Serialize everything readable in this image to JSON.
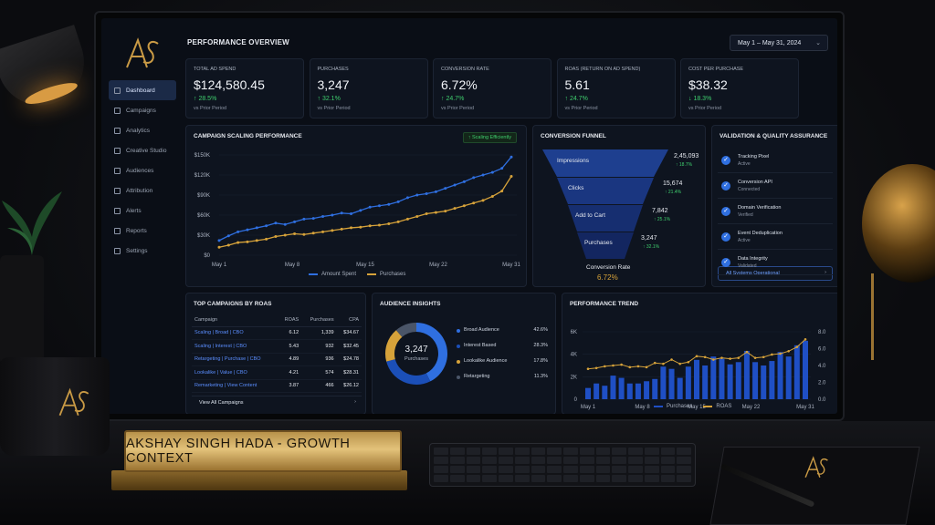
{
  "app": {
    "title": "PERFORMANCE OVERVIEW",
    "date_range": "May 1 – May 31, 2024"
  },
  "sidebar": {
    "items": [
      {
        "label": "Dashboard",
        "icon": "dashboard-icon",
        "active": true
      },
      {
        "label": "Campaigns",
        "icon": "campaigns-icon"
      },
      {
        "label": "Analytics",
        "icon": "analytics-icon"
      },
      {
        "label": "Creative Studio",
        "icon": "creative-icon"
      },
      {
        "label": "Audiences",
        "icon": "audiences-icon"
      },
      {
        "label": "Attribution",
        "icon": "attribution-icon"
      },
      {
        "label": "Alerts",
        "icon": "bell-icon"
      },
      {
        "label": "Reports",
        "icon": "reports-icon"
      },
      {
        "label": "Settings",
        "icon": "gear-icon"
      }
    ]
  },
  "kpis": [
    {
      "label": "TOTAL AD SPEND",
      "value": "$124,580.45",
      "change": "↑ 28.5%",
      "sub": "vs Prior Period"
    },
    {
      "label": "PURCHASES",
      "value": "3,247",
      "change": "↑ 32.1%",
      "sub": "vs Prior Period"
    },
    {
      "label": "CONVERSION RATE",
      "value": "6.72%",
      "change": "↑ 24.7%",
      "sub": "vs Prior Period"
    },
    {
      "label": "ROAS (RETURN ON AD SPEND)",
      "value": "5.61",
      "change": "↑ 24.7%",
      "sub": "vs Prior Period"
    },
    {
      "label": "COST PER PURCHASE",
      "value": "$38.32",
      "change": "↓ 18.3%",
      "sub": "vs Prior Period"
    }
  ],
  "scaling": {
    "title": "CAMPAIGN SCALING PERFORMANCE",
    "badge": "↑ Scaling Efficiently"
  },
  "funnel": {
    "title": "CONVERSION FUNNEL",
    "stages": [
      {
        "label": "Impressions",
        "value": "2,45,093",
        "change": "↑ 18.7%"
      },
      {
        "label": "Clicks",
        "value": "15,674",
        "change": "↑ 21.4%"
      },
      {
        "label": "Add to Cart",
        "value": "7,842",
        "change": "↑ 25.1%"
      },
      {
        "label": "Purchases",
        "value": "3,247",
        "change": "↑ 32.1%"
      }
    ],
    "rate_label": "Conversion Rate",
    "rate_value": "6.72%"
  },
  "validation": {
    "title": "VALIDATION & QUALITY ASSURANCE",
    "items": [
      {
        "name": "Tracking Pixel",
        "status": "Active"
      },
      {
        "name": "Conversion API",
        "status": "Connected"
      },
      {
        "name": "Domain Verification",
        "status": "Verified"
      },
      {
        "name": "Event Deduplication",
        "status": "Active"
      },
      {
        "name": "Data Integrity",
        "status": "Validated"
      }
    ],
    "button": "All Systems Operational"
  },
  "campaigns": {
    "title": "TOP CAMPAIGNS BY ROAS",
    "headers": [
      "Campaign",
      "ROAS",
      "Purchases",
      "CPA"
    ],
    "rows": [
      [
        "Scaling | Broad | CBO",
        "6.12",
        "1,339",
        "$34.67"
      ],
      [
        "Scaling | Interest | CBO",
        "5.43",
        "932",
        "$32.45"
      ],
      [
        "Retargeting | Purchase | CBO",
        "4.89",
        "936",
        "$24.78"
      ],
      [
        "Lookalike | Value | CBO",
        "4.21",
        "574",
        "$28.31"
      ],
      [
        "Remarketing | View Content",
        "3.87",
        "466",
        "$26.12"
      ]
    ],
    "view_all": "View All Campaigns"
  },
  "audience": {
    "title": "AUDIENCE INSIGHTS",
    "donut_value": "3,247",
    "donut_label": "Purchases",
    "segments": [
      {
        "name": "Broad Audience",
        "pct": "42.6%",
        "color": "#2f6fe0"
      },
      {
        "name": "Interest Based",
        "pct": "28.3%",
        "color": "#1b4fb8"
      },
      {
        "name": "Lookalike Audience",
        "pct": "17.8%",
        "color": "#d6a23a"
      },
      {
        "name": "Retargeting",
        "pct": "11.3%",
        "color": "#4a5568"
      }
    ]
  },
  "nameplate": {
    "text": "AKSHAY SINGH HADA - GROWTH CONTEXT"
  },
  "chart_data": [
    {
      "type": "line",
      "title": "CAMPAIGN SCALING PERFORMANCE",
      "x_ticks": [
        "May 1",
        "May 8",
        "May 15",
        "May 22",
        "May 31"
      ],
      "y_ticks": [
        "$0",
        "$30K",
        "$60K",
        "$90K",
        "$120K",
        "$150K"
      ],
      "ylim": [
        0,
        150000
      ],
      "series": [
        {
          "name": "Amount Spent",
          "color": "#2f6fe0",
          "values": [
            22000,
            29000,
            35000,
            38000,
            41000,
            44000,
            48000,
            46000,
            50000,
            54000,
            55000,
            58000,
            60000,
            63000,
            62000,
            67000,
            72000,
            74000,
            76000,
            80000,
            86000,
            90000,
            92000,
            95000,
            100000,
            105000,
            110000,
            116000,
            120000,
            124000,
            130000,
            147000
          ]
        },
        {
          "name": "Purchases",
          "color": "#d6a23a",
          "values": [
            12000,
            15000,
            19000,
            20000,
            22000,
            24000,
            28000,
            30000,
            32000,
            31000,
            33000,
            35000,
            37000,
            39000,
            41000,
            42000,
            44000,
            45000,
            47000,
            50000,
            54000,
            58000,
            62000,
            64000,
            66000,
            70000,
            74000,
            78000,
            82000,
            88000,
            96000,
            118000
          ]
        }
      ],
      "legend": "bottom"
    },
    {
      "type": "bar",
      "title": "PERFORMANCE TREND",
      "x_ticks": [
        "May 1",
        "May 8",
        "May 15",
        "May 22",
        "May 31"
      ],
      "y_ticks_left": [
        "0",
        "2K",
        "4K",
        "6K"
      ],
      "y_ticks_right": [
        "0.0",
        "2.0",
        "4.0",
        "6.0",
        "8.0"
      ],
      "ylim_left": [
        0,
        6000
      ],
      "ylim_right": [
        0,
        8
      ],
      "series": [
        {
          "name": "Purchases",
          "type": "bar",
          "color": "#1f4fc4",
          "values": [
            1000,
            1400,
            1200,
            2100,
            1900,
            1400,
            1400,
            1600,
            1800,
            2900,
            2700,
            1900,
            2900,
            3500,
            3000,
            3800,
            3600,
            3100,
            3300,
            4300,
            3300,
            3000,
            3400,
            4200,
            3800,
            4800,
            5200
          ]
        },
        {
          "name": "ROAS",
          "type": "line",
          "color": "#d6a23a",
          "values": [
            3.6,
            3.7,
            3.9,
            4.0,
            4.1,
            3.8,
            3.9,
            3.8,
            4.3,
            4.2,
            4.7,
            4.2,
            4.4,
            5.1,
            5.0,
            4.7,
            4.9,
            4.8,
            4.9,
            5.6,
            4.9,
            5.0,
            5.3,
            5.4,
            5.7,
            6.2,
            7.1
          ]
        }
      ],
      "legend": "bottom"
    }
  ]
}
